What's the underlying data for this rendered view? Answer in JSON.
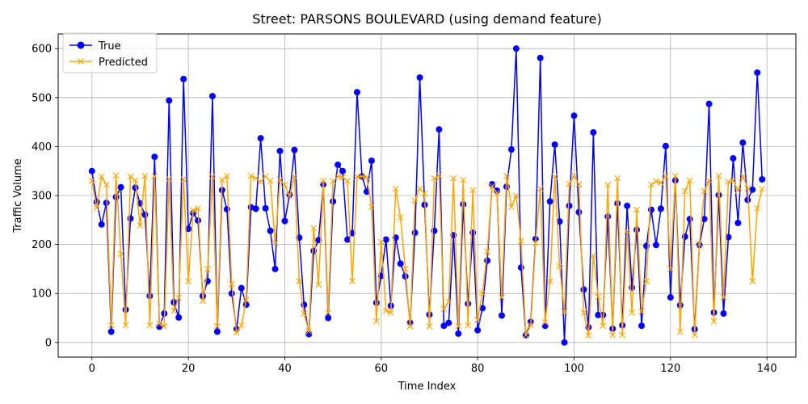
{
  "chart_data": {
    "type": "line",
    "title": "Street: PARSONS BOULEVARD (using demand feature)",
    "xlabel": "Time Index",
    "ylabel": "Traffic Volume",
    "xlim": [
      -7,
      146
    ],
    "ylim": [
      -30,
      630
    ],
    "xticks": [
      0,
      20,
      40,
      60,
      80,
      100,
      120,
      140
    ],
    "yticks": [
      0,
      100,
      200,
      300,
      400,
      500,
      600
    ],
    "grid": true,
    "legend_position": "top-left",
    "series": [
      {
        "name": "True",
        "color": "#0000ff",
        "marker": "circle",
        "values": [
          350,
          287,
          241,
          285,
          22,
          297,
          317,
          67,
          253,
          316,
          284,
          261,
          95,
          379,
          32,
          59,
          494,
          82,
          51,
          538,
          232,
          264,
          249,
          95,
          125,
          503,
          22,
          311,
          272,
          100,
          27,
          111,
          77,
          276,
          273,
          417,
          274,
          228,
          150,
          391,
          248,
          302,
          393,
          214,
          77,
          17,
          187,
          209,
          323,
          50,
          288,
          363,
          350,
          210,
          223,
          511,
          339,
          308,
          371,
          81,
          136,
          210,
          75,
          214,
          161,
          135,
          40,
          224,
          541,
          281,
          57,
          228,
          435,
          34,
          40,
          219,
          18,
          282,
          79,
          224,
          25,
          70,
          167,
          323,
          310,
          55,
          318,
          394,
          600,
          153,
          15,
          42,
          211,
          581,
          34,
          288,
          404,
          247,
          0,
          279,
          463,
          266,
          108,
          31,
          429,
          56,
          56,
          257,
          28,
          284,
          35,
          279,
          112,
          230,
          34,
          197,
          271,
          199,
          273,
          401,
          92,
          331,
          76,
          216,
          252,
          27,
          199,
          252,
          487,
          61,
          301,
          59,
          215,
          376,
          244,
          408,
          291,
          312,
          551,
          333
        ]
      },
      {
        "name": "Predicted",
        "color": "#ffa500",
        "marker": "x",
        "values": [
          330,
          275,
          339,
          322,
          35,
          341,
          181,
          35,
          339,
          331,
          239,
          340,
          35,
          340,
          38,
          33,
          334,
          64,
          91,
          333,
          125,
          270,
          274,
          85,
          150,
          339,
          33,
          332,
          340,
          119,
          20,
          35,
          87,
          340,
          335,
          328,
          339,
          330,
          203,
          332,
          322,
          299,
          339,
          125,
          59,
          23,
          233,
          118,
          330,
          61,
          329,
          339,
          337,
          330,
          125,
          339,
          339,
          337,
          277,
          43,
          205,
          65,
          61,
          314,
          255,
          150,
          33,
          290,
          314,
          304,
          33,
          335,
          341,
          68,
          83,
          335,
          33,
          332,
          35,
          311,
          46,
          101,
          186,
          319,
          305,
          92,
          340,
          277,
          300,
          207,
          15,
          35,
          203,
          314,
          41,
          125,
          339,
          156,
          62,
          324,
          341,
          323,
          61,
          14,
          177,
          93,
          34,
          322,
          15,
          335,
          15,
          227,
          61,
          271,
          63,
          125,
          322,
          329,
          326,
          340,
          150,
          340,
          22,
          309,
          331,
          15,
          201,
          309,
          331,
          43,
          340,
          92,
          328,
          331,
          310,
          340,
          315,
          125,
          274,
          313
        ]
      }
    ]
  }
}
